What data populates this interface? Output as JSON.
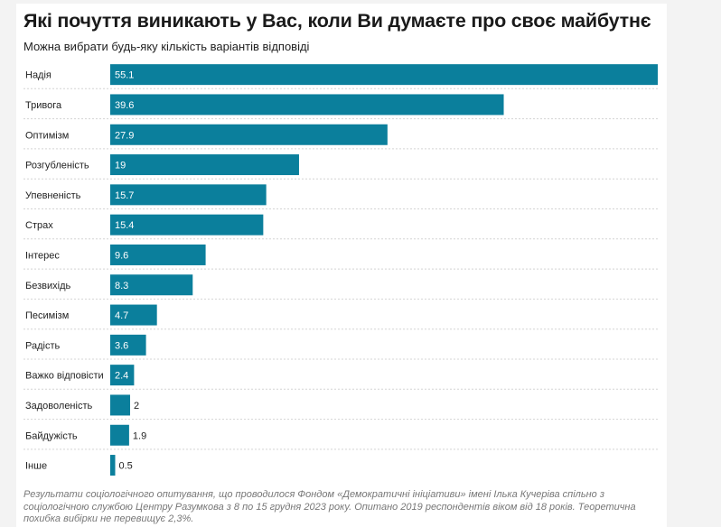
{
  "header": {
    "title": "Які почуття виникають у Вас, коли Ви думаєте про своє майбутнє",
    "subtitle": "Можна вибрати будь-яку кількість варіантів відповіді"
  },
  "footnote": "Результати соціологічного опитування, що проводилося Фондом «Демократичні ініціативи» імені Ілька Кучеріва спільно з соціологічною службою Центру Разумкова з 8 по 15 грудня 2023 року. Опитано 2019 респондентів віком від 18 років. Теоретична похибка вибірки не перевищує 2,3%.",
  "colors": {
    "bar": "#0b7f9c",
    "grid": "#d4d4d4",
    "label_inside": "#ffffff",
    "label_outside": "#222222"
  },
  "chart_data": {
    "type": "bar",
    "orientation": "horizontal",
    "categories": [
      "Надія",
      "Тривога",
      "Оптимізм",
      "Розгубленість",
      "Упевненість",
      "Страх",
      "Інтерес",
      "Безвихідь",
      "Песимізм",
      "Радість",
      "Важко відповісти",
      "Задоволеність",
      "Байдужість",
      "Інше"
    ],
    "values": [
      55.1,
      39.6,
      27.9,
      19,
      15.7,
      15.4,
      9.6,
      8.3,
      4.7,
      3.6,
      2.4,
      2,
      1.9,
      0.5
    ],
    "value_labels": [
      "55.1",
      "39.6",
      "27.9",
      "19",
      "15.7",
      "15.4",
      "9.6",
      "8.3",
      "4.7",
      "3.6",
      "2.4",
      "2",
      "1.9",
      "0.5"
    ],
    "xlim": [
      0,
      55.1
    ],
    "grid": true,
    "title": "Які почуття виникають у Вас, коли Ви думаєте про своє майбутнє",
    "subtitle": "Можна вибрати будь-яку кількість варіантів відповіді"
  }
}
